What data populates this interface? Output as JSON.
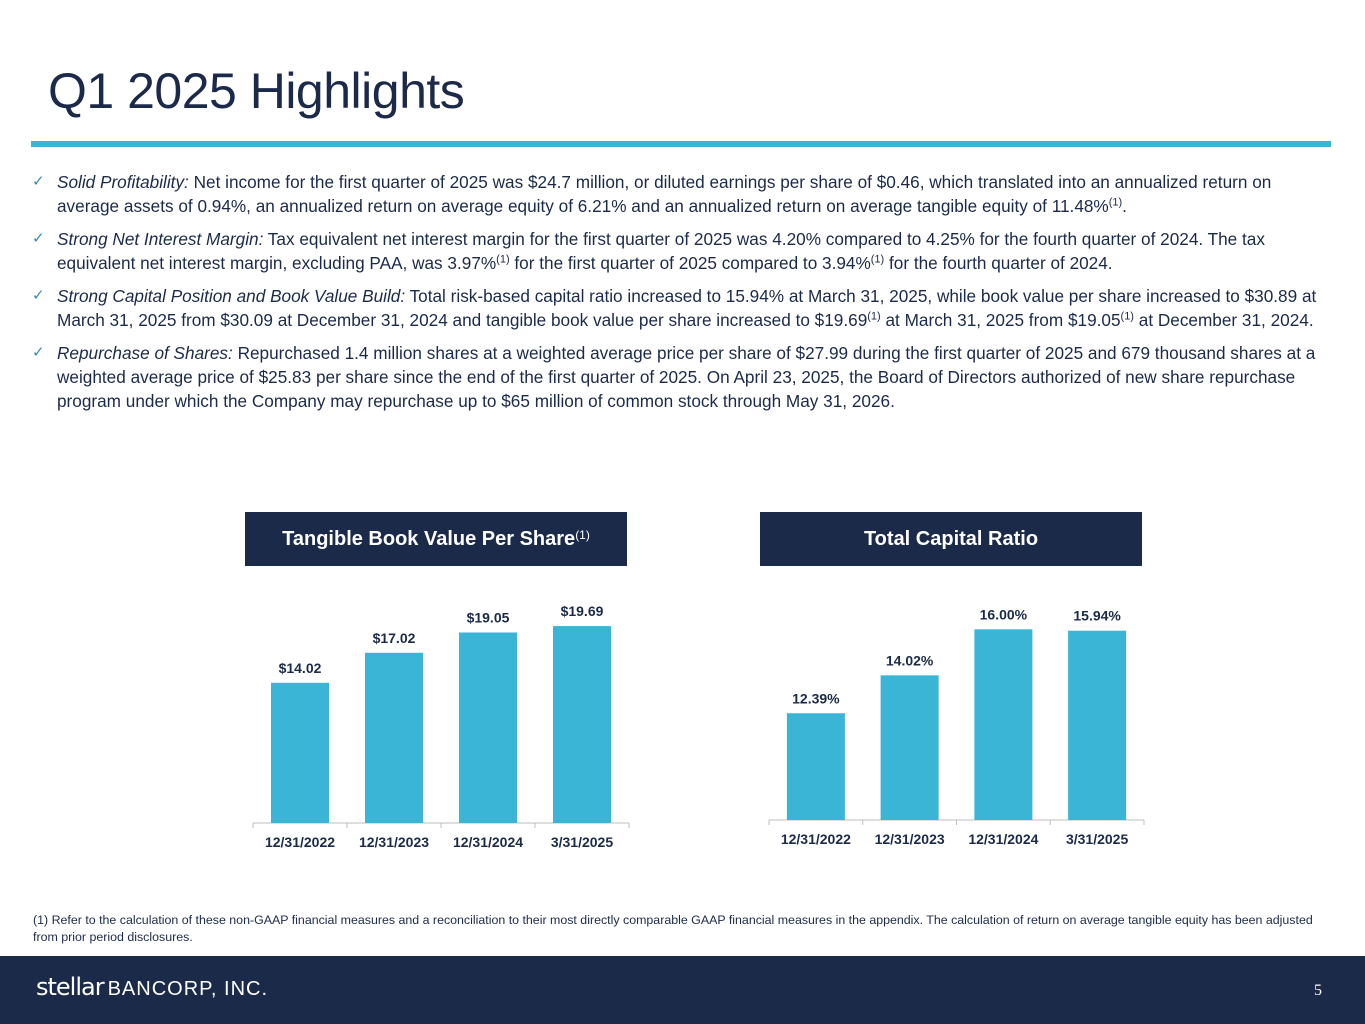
{
  "title": "Q1 2025 Highlights",
  "bullets": [
    {
      "lead": "Solid Profitability:",
      "text": " Net income for the first quarter of 2025 was $24.7 million, or diluted earnings per share of $0.46, which translated into an annualized return on average assets of 0.94%, an annualized return on average equity of 6.21% and an annualized return on average tangible equity of 11.48%",
      "sup1": "(1)",
      "tail": "."
    },
    {
      "lead": "Strong Net Interest Margin:",
      "text": " Tax equivalent net interest margin for the first quarter of 2025 was 4.20% compared to 4.25% for the fourth quarter of 2024. The tax equivalent net interest margin, excluding PAA, was 3.97%",
      "sup1": "(1)",
      "mid": " for the first quarter of 2025 compared to 3.94%",
      "sup2": "(1)",
      "tail": " for the fourth quarter of 2024."
    },
    {
      "lead": "Strong Capital Position and Book Value Build:",
      "text": " Total risk-based capital ratio increased to 15.94% at March 31, 2025, while book value per share increased to $30.89 at March 31, 2025 from $30.09 at December 31, 2024 and tangible book value per share increased to $19.69",
      "sup1": "(1)",
      "mid": " at March 31, 2025 from $19.05",
      "sup2": "(1)",
      "tail": " at December 31, 2024."
    },
    {
      "lead": "Repurchase of Shares:",
      "text": " Repurchased 1.4 million shares at a weighted average price per share of $27.99 during the first quarter of 2025 and 679 thousand shares at a weighted average price of $25.83 per share since the end of the first quarter of 2025. On April 23, 2025, the Board of Directors authorized of new share repurchase program under which the Company may repurchase up to $65 million of common stock through May 31, 2026."
    }
  ],
  "chart_data": [
    {
      "type": "bar",
      "title": "Tangible Book Value Per Share",
      "title_sup": "(1)",
      "categories": [
        "12/31/2022",
        "12/31/2023",
        "12/31/2024",
        "3/31/2025"
      ],
      "values": [
        14.02,
        17.02,
        19.05,
        19.69
      ],
      "labels": [
        "$14.02",
        "$17.02",
        "$19.05",
        "$19.69"
      ],
      "ylim": [
        0,
        20
      ],
      "xlabel": "",
      "ylabel": "",
      "grid": false
    },
    {
      "type": "bar",
      "title": "Total Capital Ratio",
      "categories": [
        "12/31/2022",
        "12/31/2023",
        "12/31/2024",
        "3/31/2025"
      ],
      "values": [
        12.39,
        14.02,
        16.0,
        15.94
      ],
      "labels": [
        "12.39%",
        "14.02%",
        "16.00%",
        "15.94%"
      ],
      "ylim": [
        7.8,
        16.4
      ],
      "xlabel": "",
      "ylabel": "",
      "grid": false
    }
  ],
  "footnote": "(1) Refer to the calculation of these non-GAAP financial measures and a reconciliation to their most directly comparable GAAP financial measures in the appendix. The calculation of return on average tangible equity has been adjusted from prior period disclosures.",
  "footer": {
    "brand_name": "stellar",
    "brand_suffix": "BANCORP, INC.",
    "page_number": "5"
  },
  "colors": {
    "navy": "#1c2a4a",
    "accent": "#3ab5d5"
  }
}
